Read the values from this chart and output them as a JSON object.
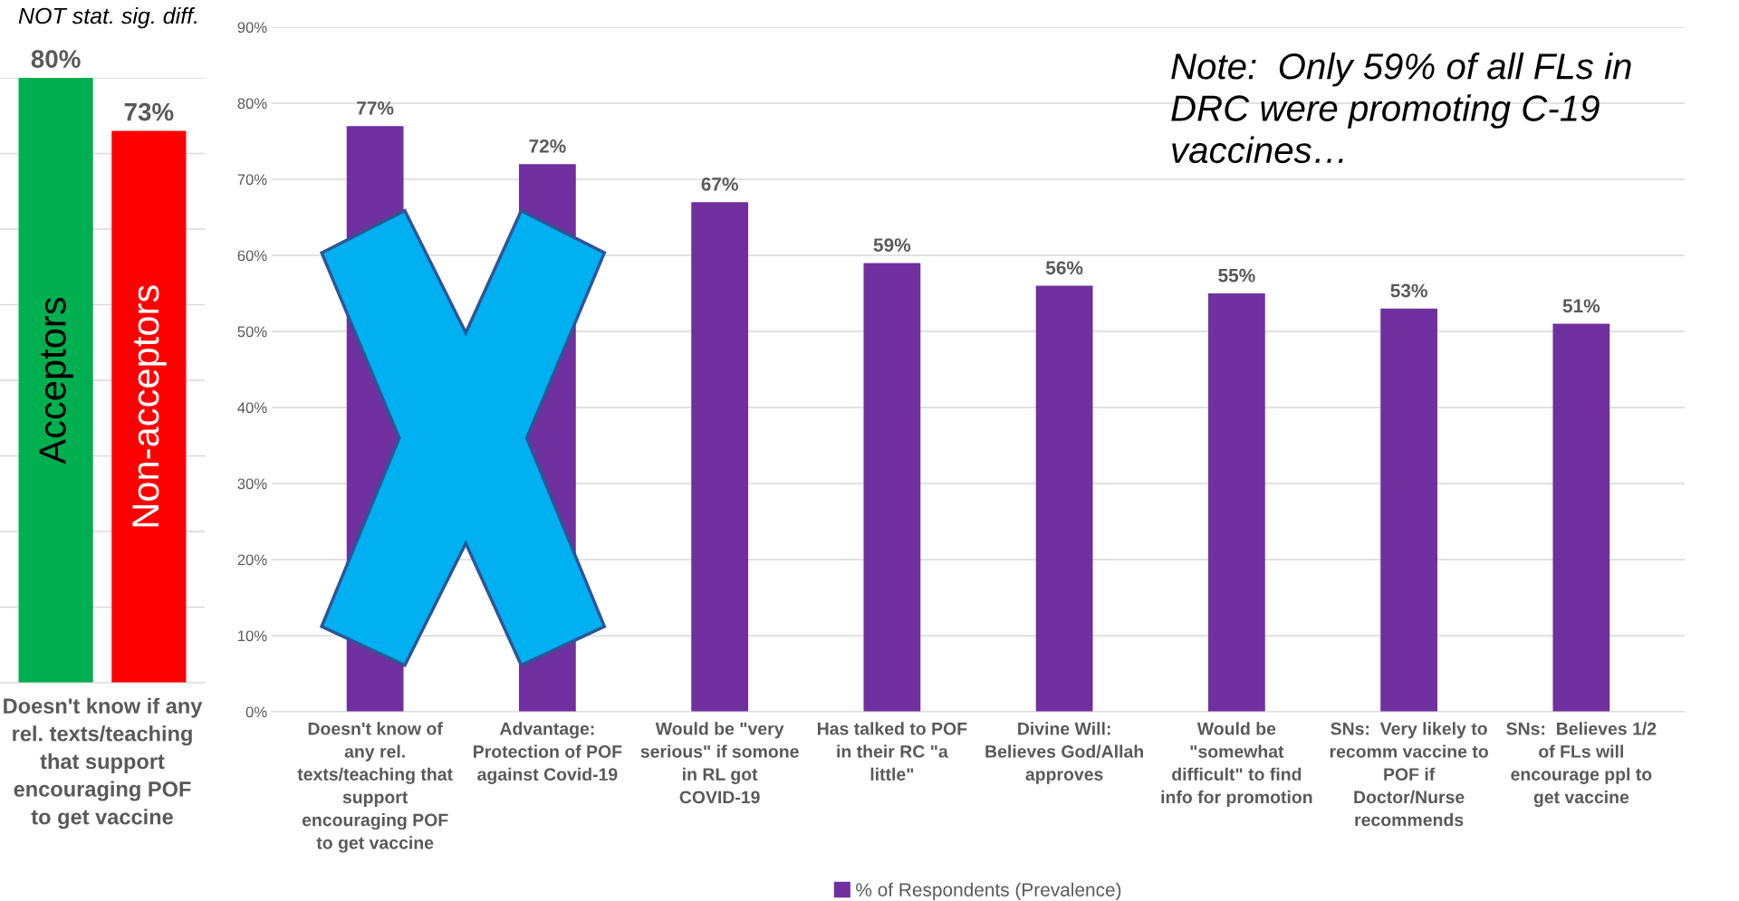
{
  "chart_data": [
    {
      "type": "bar",
      "categories": [
        "Acceptors",
        "Non-acceptors"
      ],
      "values": [
        80,
        73
      ],
      "colors": [
        "#00b050",
        "#ff0000"
      ],
      "value_labels": [
        "80%",
        "73%"
      ],
      "xlabel": "Doesn't know if any rel. texts/teaching that support encouraging POF to get vaccine",
      "ylim": [
        0,
        80
      ],
      "yticks": [
        {
          "value": 0,
          "label": null
        },
        {
          "value": 10,
          "label": null
        },
        {
          "value": 20,
          "label": null
        },
        {
          "value": 30,
          "label": null
        },
        {
          "value": 40,
          "label": null
        },
        {
          "value": 50,
          "label": null
        },
        {
          "value": 60,
          "label": null
        },
        {
          "value": 70,
          "label": null
        },
        {
          "value": 80,
          "label": null
        }
      ],
      "grid": "y",
      "tick_labels": false,
      "annotations": [
        "NOT stat. sig. diff."
      ]
    },
    {
      "type": "bar",
      "categories": [
        "Doesn't know of any rel. texts/teaching that support encouraging POF to get vaccine",
        "Advantage: Protection of POF against Covid-19",
        "Would be \"very serious\" if somone in RL got COVID-19",
        "Has talked to POF in their RC \"a little\"",
        "Divine Will: Believes God/Allah approves",
        "Would be \"somewhat difficult\" to find info for promotion",
        "SNs:  Very likely to recomm vaccine to POF if Doctor/Nurse recommends",
        "SNs:  Believes 1/2 of FLs will encourage ppl to get vaccine"
      ],
      "series": [
        {
          "name": "% of Respondents (Prevalence)",
          "color": "#7030a0",
          "values": [
            77,
            72,
            67,
            59,
            56,
            55,
            53,
            51
          ],
          "value_labels": [
            "77%",
            "72%",
            "67%",
            "59%",
            "56%",
            "55%",
            "53%",
            "51%"
          ]
        }
      ],
      "ylim": [
        0,
        90
      ],
      "yticks": [
        {
          "value": 0,
          "label": "0%"
        },
        {
          "value": 10,
          "label": "10%"
        },
        {
          "value": 20,
          "label": "20%"
        },
        {
          "value": 30,
          "label": "30%"
        },
        {
          "value": 40,
          "label": "40%"
        },
        {
          "value": 50,
          "label": "50%"
        },
        {
          "value": 60,
          "label": "60%"
        },
        {
          "value": 70,
          "label": "70%"
        },
        {
          "value": 80,
          "label": "80%"
        },
        {
          "value": 90,
          "label": "90%"
        }
      ],
      "grid": "y",
      "legend": "bottom",
      "annotations": [
        "Note:  Only 59% of all FLs in DRC were promoting C-19 vaccines…"
      ]
    }
  ]
}
